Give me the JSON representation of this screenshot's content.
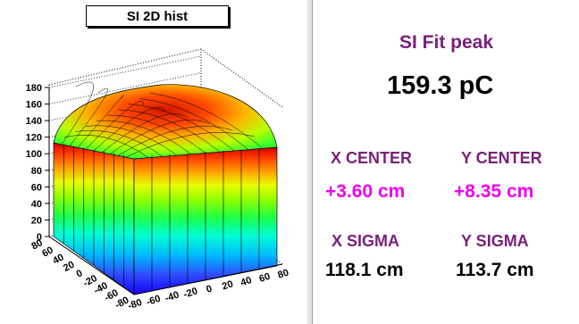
{
  "plot": {
    "title": "SI 2D hist",
    "z_ticks": [
      "0",
      "20",
      "40",
      "60",
      "80",
      "100",
      "120",
      "140",
      "160",
      "180"
    ],
    "x_ticks": [
      "80",
      "60",
      "40",
      "20",
      "0",
      "-20",
      "-40",
      "-60",
      "-80"
    ],
    "y_ticks": [
      "-80",
      "-60",
      "-40",
      "-20",
      "0",
      "20",
      "40",
      "60",
      "80"
    ]
  },
  "fit": {
    "title": "SI Fit peak",
    "value": "159.3 pC"
  },
  "center": {
    "x_label": "X CENTER",
    "y_label": "Y CENTER",
    "x_value": "+3.60 cm",
    "y_value": "+8.35 cm"
  },
  "sigma": {
    "x_label": "X SIGMA",
    "y_label": "Y SIGMA",
    "x_value": "118.1 cm",
    "y_value": "113.7 cm"
  },
  "colors": {
    "label_purple": "#7a1f7a",
    "value_magenta": "#ee00ee"
  }
}
